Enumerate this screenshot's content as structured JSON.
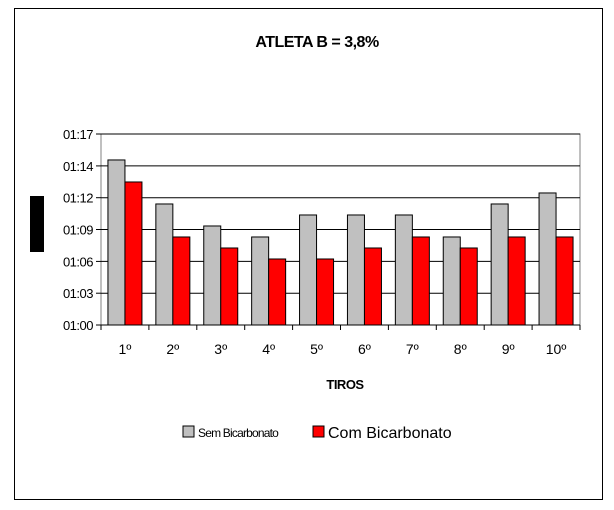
{
  "chart_data": {
    "type": "bar",
    "title": "ATLETA B  =  3,8%",
    "xlabel": "TIROS",
    "ylabel": "",
    "categories": [
      "1º",
      "2º",
      "3º",
      "4º",
      "5º",
      "6º",
      "7º",
      "8º",
      "9º",
      "10º"
    ],
    "y_tick_labels": [
      "01:00",
      "01:03",
      "01:06",
      "01:09",
      "01:12",
      "01:14",
      "01:17"
    ],
    "ylim_seconds": [
      60,
      77.36
    ],
    "series": [
      {
        "name": "Sem Bicarbonato",
        "color": "#c0c0c0",
        "values_seconds": [
          75,
          71,
          69,
          68,
          70,
          70,
          70,
          68,
          71,
          72
        ]
      },
      {
        "name": "Com Bicarbonato",
        "color": "#ff0000",
        "values_seconds": [
          73,
          68,
          67,
          66,
          66,
          67,
          68,
          67,
          68,
          68
        ]
      }
    ],
    "grid": true,
    "legend_position": "bottom"
  }
}
